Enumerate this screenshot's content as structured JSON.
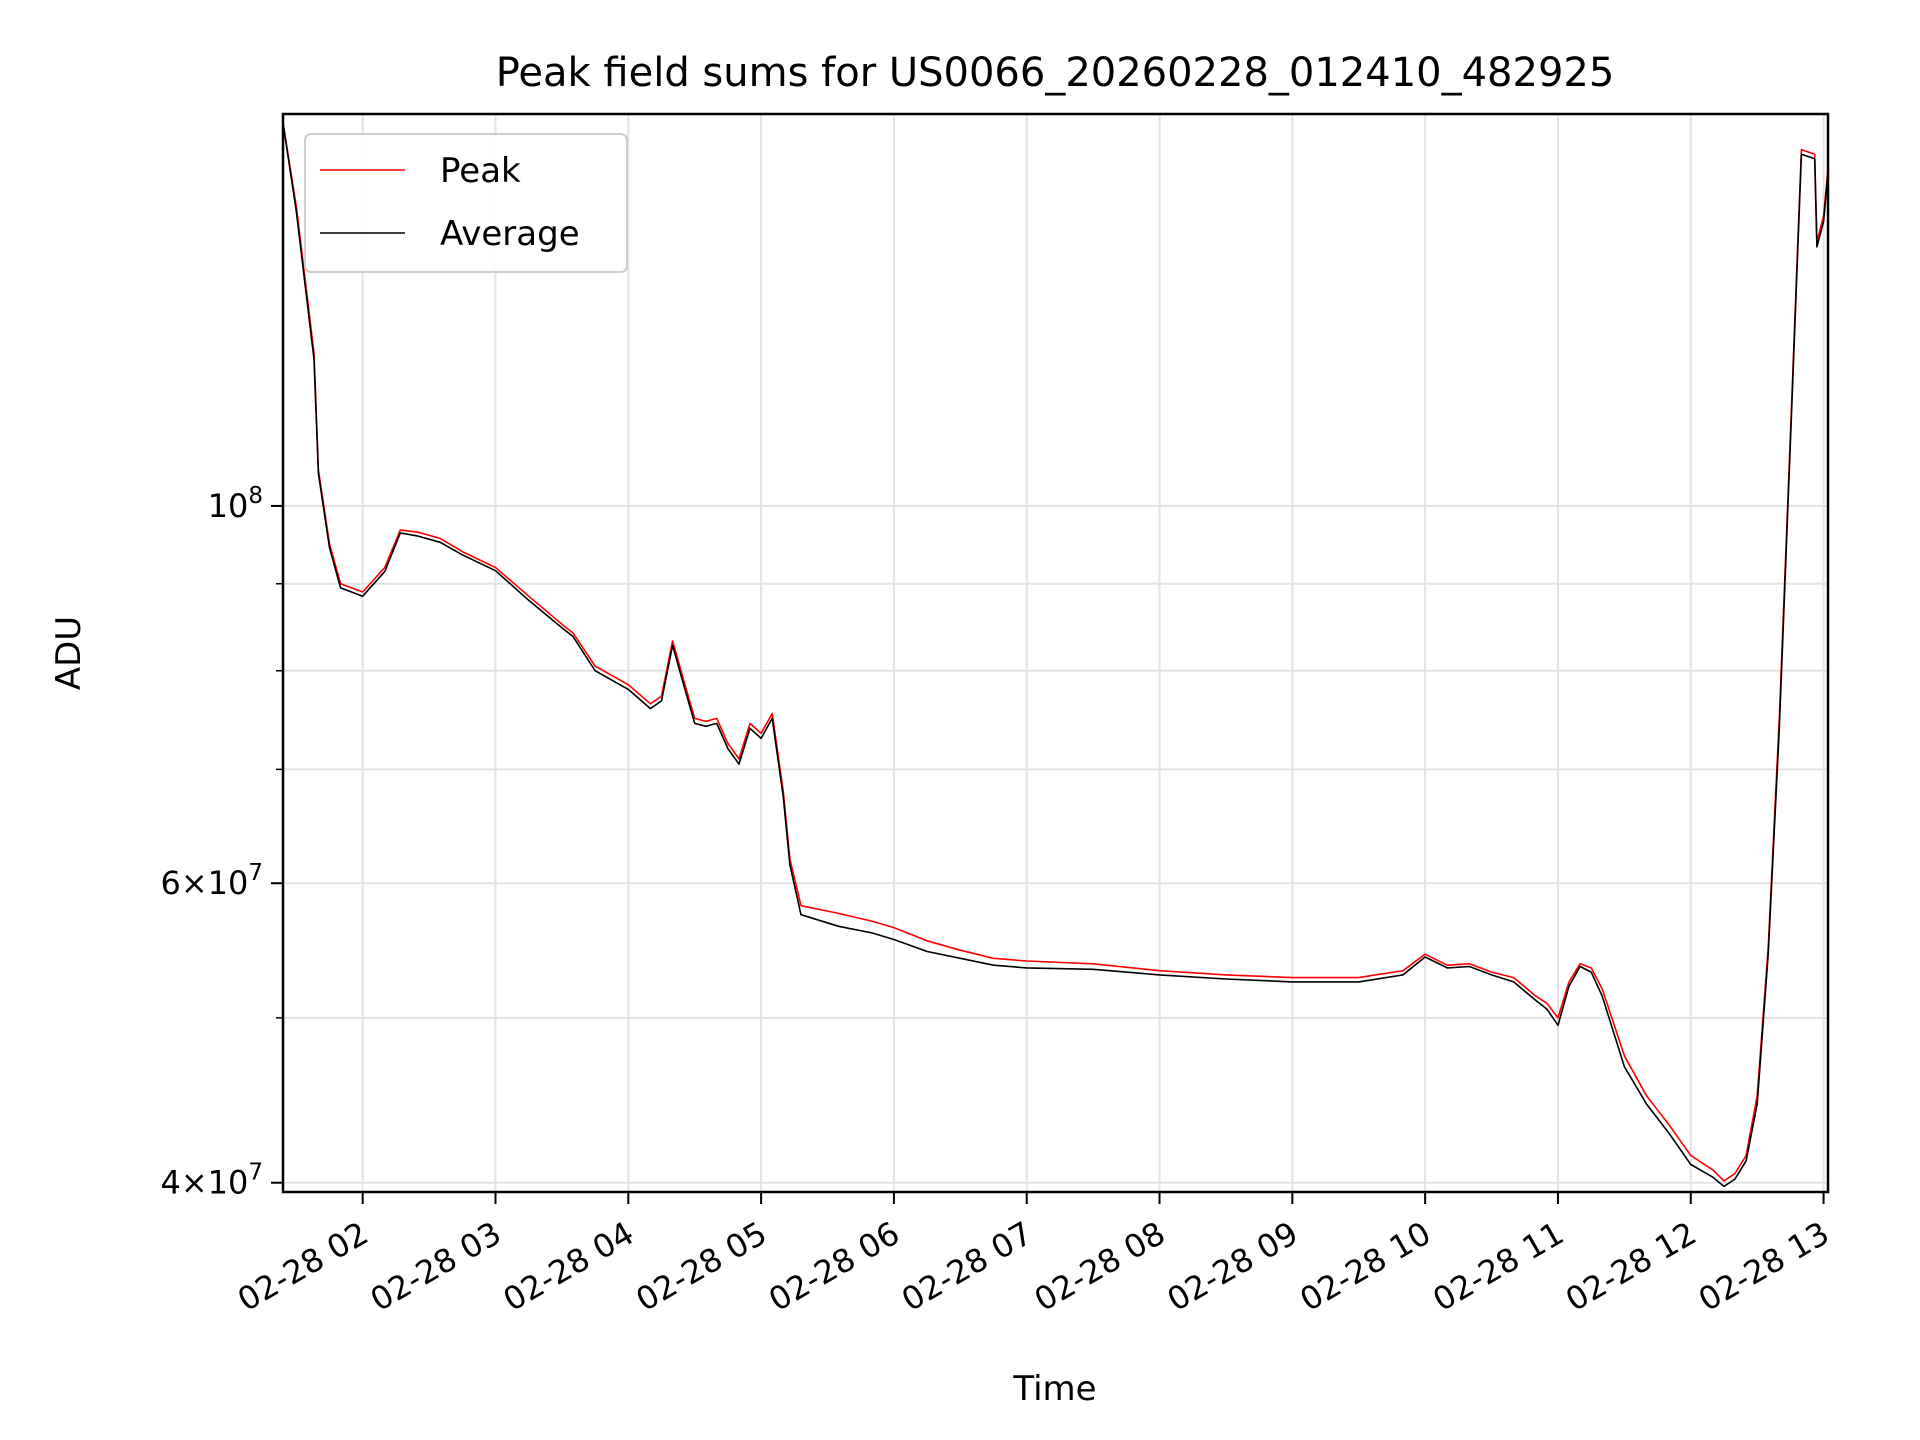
{
  "chart_data": {
    "type": "line",
    "title": "Peak field sums for US0066_20260228_012410_482925",
    "xlabel": "Time",
    "ylabel": "ADU",
    "yscale": "log",
    "grid": true,
    "legend_position": "top-left",
    "xlim": [
      "2026-02-28 01:24",
      "2026-02-28 13:02"
    ],
    "ylim": [
      39500000,
      170000000
    ],
    "x_ticks": [
      "02-28 02",
      "02-28 03",
      "02-28 04",
      "02-28 05",
      "02-28 06",
      "02-28 07",
      "02-28 08",
      "02-28 09",
      "02-28 10",
      "02-28 11",
      "02-28 12",
      "02-28 13"
    ],
    "y_major_ticks": [
      {
        "value": 40000000,
        "base": "4",
        "exp": "7"
      },
      {
        "value": 60000000,
        "base": "6",
        "exp": "7"
      },
      {
        "value": 100000000,
        "base": "",
        "exp": "8"
      }
    ],
    "y_minor_ticks": [
      50000000,
      70000000,
      80000000,
      90000000
    ],
    "series": [
      {
        "name": "Peak",
        "color": "#ff0000",
        "points": [
          [
            "2026-02-28 01:24",
            168000000
          ],
          [
            "2026-02-28 01:30",
            150000000
          ],
          [
            "2026-02-28 01:38",
            123000000
          ],
          [
            "2026-02-28 01:40",
            105000000
          ],
          [
            "2026-02-28 01:45",
            95000000
          ],
          [
            "2026-02-28 01:50",
            90000000
          ],
          [
            "2026-02-28 02:00",
            89000000
          ],
          [
            "2026-02-28 02:10",
            92000000
          ],
          [
            "2026-02-28 02:17",
            96800000
          ],
          [
            "2026-02-28 02:25",
            96500000
          ],
          [
            "2026-02-28 02:35",
            95700000
          ],
          [
            "2026-02-28 02:45",
            94000000
          ],
          [
            "2026-02-28 03:00",
            92000000
          ],
          [
            "2026-02-28 03:15",
            88500000
          ],
          [
            "2026-02-28 03:30",
            85200000
          ],
          [
            "2026-02-28 03:35",
            84200000
          ],
          [
            "2026-02-28 03:45",
            80500000
          ],
          [
            "2026-02-28 04:00",
            78500000
          ],
          [
            "2026-02-28 04:10",
            76500000
          ],
          [
            "2026-02-28 04:15",
            77300000
          ],
          [
            "2026-02-28 04:20",
            83300000
          ],
          [
            "2026-02-28 04:25",
            79000000
          ],
          [
            "2026-02-28 04:30",
            75000000
          ],
          [
            "2026-02-28 04:35",
            74700000
          ],
          [
            "2026-02-28 04:40",
            75000000
          ],
          [
            "2026-02-28 04:45",
            72500000
          ],
          [
            "2026-02-28 04:50",
            71000000
          ],
          [
            "2026-02-28 04:55",
            74500000
          ],
          [
            "2026-02-28 05:00",
            73500000
          ],
          [
            "2026-02-28 05:05",
            75500000
          ],
          [
            "2026-02-28 05:10",
            68000000
          ],
          [
            "2026-02-28 05:13",
            62000000
          ],
          [
            "2026-02-28 05:18",
            58200000
          ],
          [
            "2026-02-28 05:35",
            57600000
          ],
          [
            "2026-02-28 05:50",
            57000000
          ],
          [
            "2026-02-28 06:00",
            56500000
          ],
          [
            "2026-02-28 06:15",
            55500000
          ],
          [
            "2026-02-28 06:30",
            54800000
          ],
          [
            "2026-02-28 06:45",
            54200000
          ],
          [
            "2026-02-28 07:00",
            54000000
          ],
          [
            "2026-02-28 07:30",
            53800000
          ],
          [
            "2026-02-28 08:00",
            53300000
          ],
          [
            "2026-02-28 08:30",
            53000000
          ],
          [
            "2026-02-28 09:00",
            52800000
          ],
          [
            "2026-02-28 09:30",
            52800000
          ],
          [
            "2026-02-28 09:50",
            53300000
          ],
          [
            "2026-02-28 10:00",
            54500000
          ],
          [
            "2026-02-28 10:10",
            53700000
          ],
          [
            "2026-02-28 10:20",
            53800000
          ],
          [
            "2026-02-28 10:30",
            53200000
          ],
          [
            "2026-02-28 10:40",
            52800000
          ],
          [
            "2026-02-28 10:50",
            51500000
          ],
          [
            "2026-02-28 10:55",
            51000000
          ],
          [
            "2026-02-28 11:00",
            50000000
          ],
          [
            "2026-02-28 11:05",
            52500000
          ],
          [
            "2026-02-28 11:10",
            53800000
          ],
          [
            "2026-02-28 11:15",
            53500000
          ],
          [
            "2026-02-28 11:20",
            52000000
          ],
          [
            "2026-02-28 11:30",
            47500000
          ],
          [
            "2026-02-28 11:40",
            45000000
          ],
          [
            "2026-02-28 11:50",
            43300000
          ],
          [
            "2026-02-28 12:00",
            41500000
          ],
          [
            "2026-02-28 12:10",
            40700000
          ],
          [
            "2026-02-28 12:15",
            40100000
          ],
          [
            "2026-02-28 12:20",
            40500000
          ],
          [
            "2026-02-28 12:25",
            41500000
          ],
          [
            "2026-02-28 12:30",
            45000000
          ],
          [
            "2026-02-28 12:35",
            55000000
          ],
          [
            "2026-02-28 12:40",
            75000000
          ],
          [
            "2026-02-28 12:45",
            110000000
          ],
          [
            "2026-02-28 12:50",
            162000000
          ],
          [
            "2026-02-28 12:56",
            161000000
          ],
          [
            "2026-02-28 12:57",
            143000000
          ],
          [
            "2026-02-28 13:00",
            148000000
          ],
          [
            "2026-02-28 13:02",
            158000000
          ]
        ]
      },
      {
        "name": "Average",
        "color": "#000000",
        "points": [
          [
            "2026-02-28 01:24",
            168000000
          ],
          [
            "2026-02-28 01:30",
            149000000
          ],
          [
            "2026-02-28 01:38",
            122000000
          ],
          [
            "2026-02-28 01:40",
            104500000
          ],
          [
            "2026-02-28 01:45",
            94500000
          ],
          [
            "2026-02-28 01:50",
            89500000
          ],
          [
            "2026-02-28 02:00",
            88500000
          ],
          [
            "2026-02-28 02:10",
            91500000
          ],
          [
            "2026-02-28 02:17",
            96400000
          ],
          [
            "2026-02-28 02:25",
            96000000
          ],
          [
            "2026-02-28 02:35",
            95200000
          ],
          [
            "2026-02-28 02:45",
            93600000
          ],
          [
            "2026-02-28 03:00",
            91600000
          ],
          [
            "2026-02-28 03:15",
            88000000
          ],
          [
            "2026-02-28 03:30",
            84800000
          ],
          [
            "2026-02-28 03:35",
            83800000
          ],
          [
            "2026-02-28 03:45",
            80000000
          ],
          [
            "2026-02-28 04:00",
            78000000
          ],
          [
            "2026-02-28 04:10",
            76000000
          ],
          [
            "2026-02-28 04:15",
            76800000
          ],
          [
            "2026-02-28 04:20",
            82800000
          ],
          [
            "2026-02-28 04:25",
            78500000
          ],
          [
            "2026-02-28 04:30",
            74500000
          ],
          [
            "2026-02-28 04:35",
            74200000
          ],
          [
            "2026-02-28 04:40",
            74500000
          ],
          [
            "2026-02-28 04:45",
            72000000
          ],
          [
            "2026-02-28 04:50",
            70500000
          ],
          [
            "2026-02-28 04:55",
            74000000
          ],
          [
            "2026-02-28 05:00",
            73000000
          ],
          [
            "2026-02-28 05:05",
            75000000
          ],
          [
            "2026-02-28 05:10",
            67500000
          ],
          [
            "2026-02-28 05:13",
            61500000
          ],
          [
            "2026-02-28 05:18",
            57500000
          ],
          [
            "2026-02-28 05:35",
            56600000
          ],
          [
            "2026-02-28 05:50",
            56100000
          ],
          [
            "2026-02-28 06:00",
            55600000
          ],
          [
            "2026-02-28 06:15",
            54700000
          ],
          [
            "2026-02-28 06:30",
            54200000
          ],
          [
            "2026-02-28 06:45",
            53700000
          ],
          [
            "2026-02-28 07:00",
            53500000
          ],
          [
            "2026-02-28 07:30",
            53400000
          ],
          [
            "2026-02-28 08:00",
            53000000
          ],
          [
            "2026-02-28 08:30",
            52700000
          ],
          [
            "2026-02-28 09:00",
            52500000
          ],
          [
            "2026-02-28 09:30",
            52500000
          ],
          [
            "2026-02-28 09:50",
            53000000
          ],
          [
            "2026-02-28 10:00",
            54300000
          ],
          [
            "2026-02-28 10:10",
            53500000
          ],
          [
            "2026-02-28 10:20",
            53600000
          ],
          [
            "2026-02-28 10:30",
            53000000
          ],
          [
            "2026-02-28 10:40",
            52500000
          ],
          [
            "2026-02-28 10:50",
            51200000
          ],
          [
            "2026-02-28 10:55",
            50600000
          ],
          [
            "2026-02-28 11:00",
            49500000
          ],
          [
            "2026-02-28 11:05",
            52200000
          ],
          [
            "2026-02-28 11:10",
            53600000
          ],
          [
            "2026-02-28 11:15",
            53200000
          ],
          [
            "2026-02-28 11:20",
            51500000
          ],
          [
            "2026-02-28 11:30",
            46800000
          ],
          [
            "2026-02-28 11:40",
            44500000
          ],
          [
            "2026-02-28 11:50",
            42800000
          ],
          [
            "2026-02-28 12:00",
            41000000
          ],
          [
            "2026-02-28 12:10",
            40300000
          ],
          [
            "2026-02-28 12:15",
            39800000
          ],
          [
            "2026-02-28 12:20",
            40200000
          ],
          [
            "2026-02-28 12:25",
            41200000
          ],
          [
            "2026-02-28 12:30",
            44500000
          ],
          [
            "2026-02-28 12:35",
            54500000
          ],
          [
            "2026-02-28 12:40",
            74000000
          ],
          [
            "2026-02-28 12:45",
            109000000
          ],
          [
            "2026-02-28 12:50",
            161000000
          ],
          [
            "2026-02-28 12:56",
            160000000
          ],
          [
            "2026-02-28 12:57",
            142000000
          ],
          [
            "2026-02-28 13:00",
            147000000
          ],
          [
            "2026-02-28 13:02",
            157000000
          ]
        ]
      }
    ]
  }
}
